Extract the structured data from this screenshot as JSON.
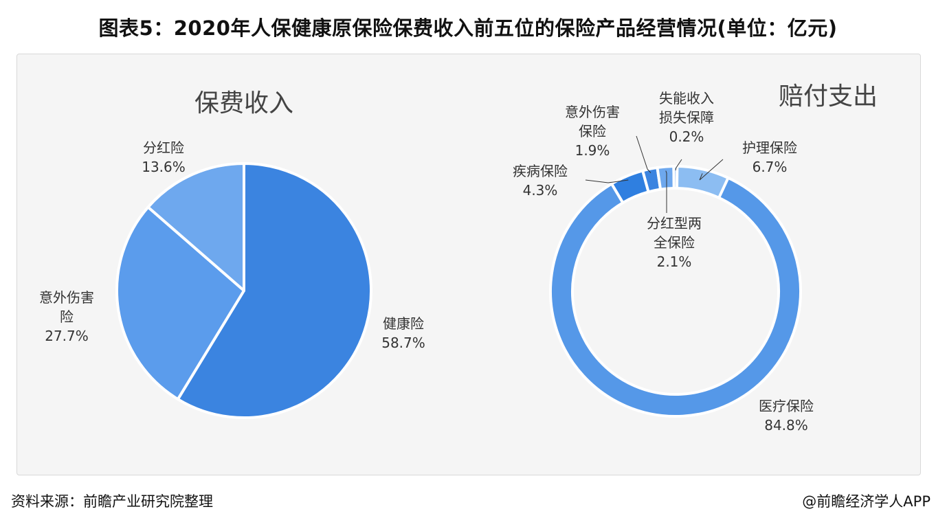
{
  "title": "图表5：2020年人保健康原保险保费收入前五位的保险产品经营情况(单位：亿元)",
  "footer": {
    "source": "资料来源：前瞻产业研究院整理",
    "credit": "@前瞻经济学人APP"
  },
  "colors": {
    "pie": [
      "#3b84e0",
      "#5b9cec",
      "#6ea8ee"
    ],
    "donut": [
      "#5598e8",
      "#2f7fe0",
      "#3b84e0",
      "#6ea8ee",
      "#7ab0f0",
      "#8cbdf2",
      "#9cc6f4"
    ],
    "separator": "#ffffff",
    "leader_line": "#333333"
  },
  "chart_data": [
    {
      "type": "pie",
      "title": "保费收入",
      "categories": [
        "健康险",
        "意外伤害险",
        "分红险"
      ],
      "values": [
        58.7,
        27.7,
        13.6
      ],
      "unit": "%",
      "slices": [
        {
          "label_lines": [
            "健康险"
          ],
          "value_text": "58.7%"
        },
        {
          "label_lines": [
            "意外伤害",
            "险"
          ],
          "value_text": "27.7%"
        },
        {
          "label_lines": [
            "分红险"
          ],
          "value_text": "13.6%"
        }
      ]
    },
    {
      "type": "pie",
      "style": "donut",
      "title": "赔付支出",
      "categories": [
        "医疗保险",
        "疾病保险",
        "意外伤害保险",
        "分红型两全保险",
        "失能收入损失保障",
        "护理保险"
      ],
      "values": [
        84.8,
        4.3,
        1.9,
        2.1,
        0.2,
        6.7
      ],
      "unit": "%",
      "slices": [
        {
          "label_lines": [
            "医疗保险"
          ],
          "value_text": "84.8%"
        },
        {
          "label_lines": [
            "疾病保险"
          ],
          "value_text": "4.3%"
        },
        {
          "label_lines": [
            "意外伤害",
            "保险"
          ],
          "value_text": "1.9%"
        },
        {
          "label_lines": [
            "分红型两",
            "全保险"
          ],
          "value_text": "2.1%"
        },
        {
          "label_lines": [
            "失能收入",
            "损失保障"
          ],
          "value_text": "0.2%"
        },
        {
          "label_lines": [
            "护理保险"
          ],
          "value_text": "6.7%"
        }
      ]
    }
  ]
}
